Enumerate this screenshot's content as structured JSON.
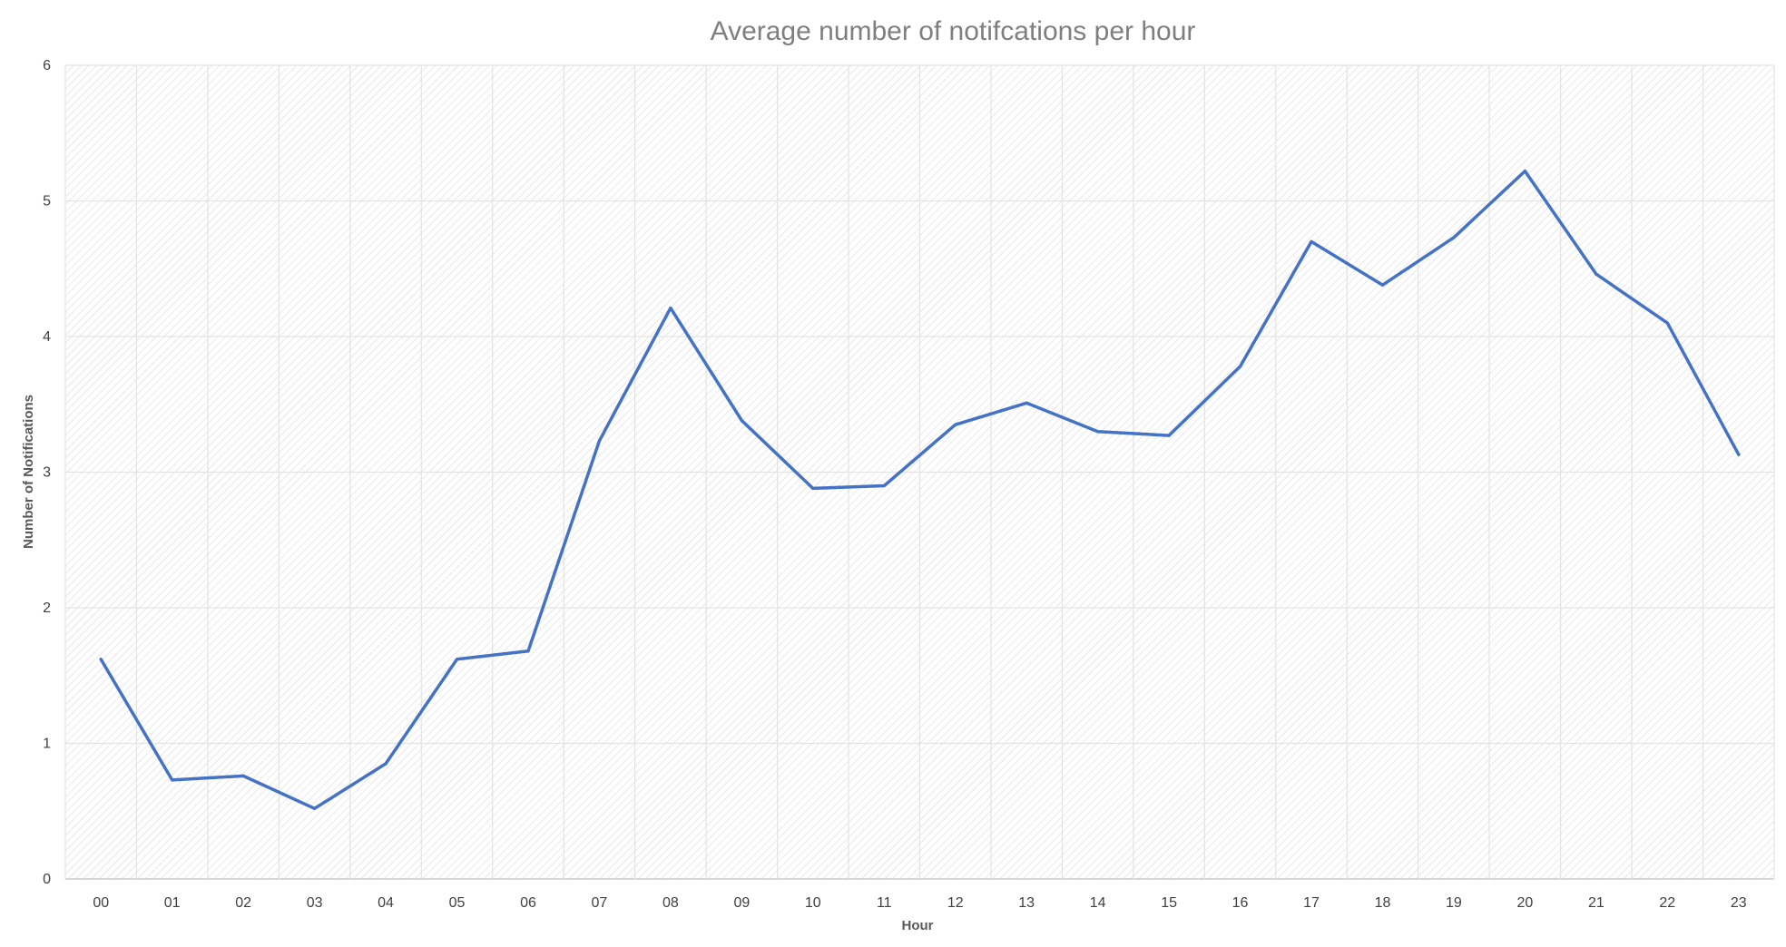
{
  "chart_data": {
    "type": "line",
    "title": "Average number of notifcations per hour",
    "xlabel": "Hour",
    "ylabel": "Number of Notifications",
    "categories": [
      "00",
      "01",
      "02",
      "03",
      "04",
      "05",
      "06",
      "07",
      "08",
      "09",
      "10",
      "11",
      "12",
      "13",
      "14",
      "15",
      "16",
      "17",
      "18",
      "19",
      "20",
      "21",
      "22",
      "23"
    ],
    "series": [
      {
        "values": [
          1.62,
          0.73,
          0.76,
          0.52,
          0.85,
          1.62,
          1.68,
          3.23,
          4.21,
          3.38,
          2.88,
          2.9,
          3.35,
          3.51,
          3.3,
          3.27,
          3.78,
          4.7,
          4.38,
          4.73,
          5.22,
          4.46,
          4.1,
          3.13
        ],
        "color": "#4472c4"
      }
    ],
    "ylim": [
      0,
      6
    ],
    "yticks": [
      "0",
      "1",
      "2",
      "3",
      "4",
      "5",
      "6"
    ],
    "grid": true,
    "plot_fill": "diagonal hatch"
  }
}
